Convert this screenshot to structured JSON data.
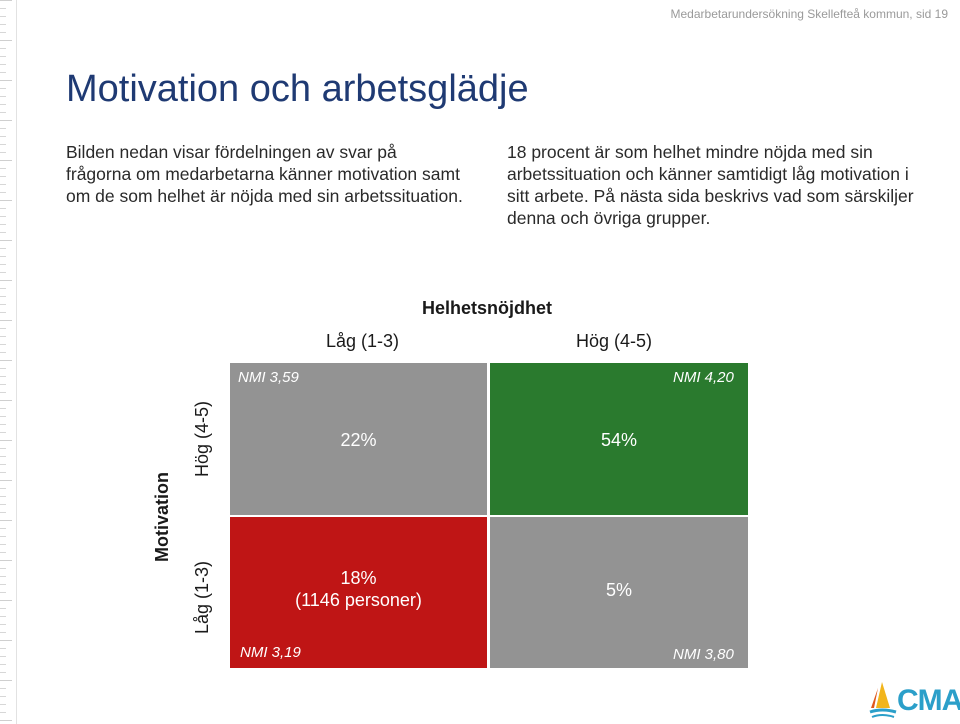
{
  "header": {
    "note": "Medarbetarundersökning Skellefteå kommun, sid 19"
  },
  "title": "Motivation och arbetsglädje",
  "paragraphs": {
    "left": "Bilden nedan visar fördelningen av svar på frågorna om medarbetarna känner motivation samt om de som helhet är nöjda med sin arbetssituation.",
    "right": "18 procent är som helhet mindre nöjda med sin arbetssituation och känner samtidigt låg motivation i sitt arbete. På nästa sida beskrivs vad som särskiljer denna och övriga grupper."
  },
  "matrix": {
    "x_axis_title": "Helhetsnöjdhet",
    "x_low": "Låg (1-3)",
    "x_high": "Hög (4-5)",
    "y_axis_title": "Motivation",
    "y_high": "Hög (4-5)",
    "y_low": "Låg (1-3)",
    "cells": {
      "top_left": {
        "nmi": "NMI 3,59",
        "pct": "22%",
        "color": "#939393"
      },
      "top_right": {
        "nmi": "NMI 4,20",
        "pct": "54%",
        "color": "#2a7a2e"
      },
      "bottom_left": {
        "nmi": "NMI 3,19",
        "pct": "18%",
        "sub": "(1146 personer)",
        "color": "#bf1515"
      },
      "bottom_right": {
        "nmi": "NMI 3,80",
        "pct": "5%",
        "color": "#939393"
      }
    }
  },
  "logo": {
    "text": "CMA",
    "icon": "sailboat-logo-icon"
  }
}
